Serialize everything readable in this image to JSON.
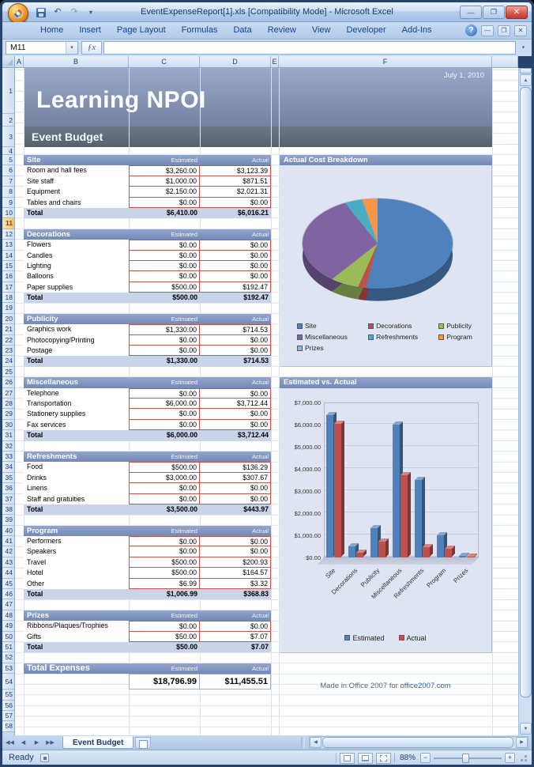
{
  "window": {
    "title": "EventExpenseReport[1].xls  [Compatibility Mode] - Microsoft Excel",
    "quick_access": [
      "Save",
      "Undo",
      "Redo"
    ],
    "ribbon_tabs": [
      "Home",
      "Insert",
      "Page Layout",
      "Formulas",
      "Data",
      "Review",
      "View",
      "Developer",
      "Add-Ins"
    ],
    "name_box": "M11",
    "fx_label": "ƒx",
    "formula_value": "",
    "sheet_tab": "Event Budget",
    "status": "Ready",
    "zoom": "88%"
  },
  "grid": {
    "columns": [
      "A",
      "B",
      "C",
      "D",
      "E",
      "F"
    ],
    "rows": {
      "first": 1,
      "last": 58,
      "selected_row": 11
    }
  },
  "sheet": {
    "date": "July 1, 2010",
    "title": "Learning NPOI",
    "banner": "Event Budget",
    "estimated_label": "Estimated",
    "actual_label": "Actual",
    "total_label": "Total",
    "sections": [
      {
        "name": "Site",
        "items": [
          {
            "label": "Room and hall fees",
            "est": "$3,260.00",
            "act": "$3,123.39"
          },
          {
            "label": "Site staff",
            "est": "$1,000.00",
            "act": "$871.51"
          },
          {
            "label": "Equipment",
            "est": "$2,150.00",
            "act": "$2,021.31"
          },
          {
            "label": "Tables and chairs",
            "est": "$0.00",
            "act": "$0.00"
          }
        ],
        "total_est": "$6,410.00",
        "total_act": "$6,016.21"
      },
      {
        "name": "Decorations",
        "items": [
          {
            "label": "Flowers",
            "est": "$0.00",
            "act": "$0.00"
          },
          {
            "label": "Candles",
            "est": "$0.00",
            "act": "$0.00"
          },
          {
            "label": "Lighting",
            "est": "$0.00",
            "act": "$0.00"
          },
          {
            "label": "Balloons",
            "est": "$0.00",
            "act": "$0.00"
          },
          {
            "label": "Paper supplies",
            "est": "$500.00",
            "act": "$192.47"
          }
        ],
        "total_est": "$500.00",
        "total_act": "$192.47"
      },
      {
        "name": "Publicity",
        "items": [
          {
            "label": "Graphics work",
            "est": "$1,330.00",
            "act": "$714.53"
          },
          {
            "label": "Photocopying/Printing",
            "est": "$0.00",
            "act": "$0.00"
          },
          {
            "label": "Postage",
            "est": "$0.00",
            "act": "$0.00"
          }
        ],
        "total_est": "$1,330.00",
        "total_act": "$714.53"
      },
      {
        "name": "Miscellaneous",
        "items": [
          {
            "label": "Telephone",
            "est": "$0.00",
            "act": "$0.00"
          },
          {
            "label": "Transportation",
            "est": "$6,000.00",
            "act": "$3,712.44"
          },
          {
            "label": "Stationery supplies",
            "est": "$0.00",
            "act": "$0.00"
          },
          {
            "label": "Fax services",
            "est": "$0.00",
            "act": "$0.00"
          }
        ],
        "total_est": "$6,000.00",
        "total_act": "$3,712.44"
      },
      {
        "name": "Refreshments",
        "items": [
          {
            "label": "Food",
            "est": "$500.00",
            "act": "$136.29"
          },
          {
            "label": "Drinks",
            "est": "$3,000.00",
            "act": "$307.67"
          },
          {
            "label": "Linens",
            "est": "$0.00",
            "act": "$0.00"
          },
          {
            "label": "Staff and gratuities",
            "est": "$0.00",
            "act": "$0.00"
          }
        ],
        "total_est": "$3,500.00",
        "total_act": "$443.97"
      },
      {
        "name": "Program",
        "items": [
          {
            "label": "Performers",
            "est": "$0.00",
            "act": "$0.00"
          },
          {
            "label": "Speakers",
            "est": "$0.00",
            "act": "$0.00"
          },
          {
            "label": "Travel",
            "est": "$500.00",
            "act": "$200.93"
          },
          {
            "label": "Hotel",
            "est": "$500.00",
            "act": "$164.57"
          },
          {
            "label": "Other",
            "est": "$6.99",
            "act": "$3.32"
          }
        ],
        "total_est": "$1,006.99",
        "total_act": "$368.83"
      },
      {
        "name": "Prizes",
        "items": [
          {
            "label": "Ribbons/Plaques/Trophies",
            "est": "$0.00",
            "act": "$0.00"
          },
          {
            "label": "Gifts",
            "est": "$50.00",
            "act": "$7.07"
          }
        ],
        "total_est": "$50.00",
        "total_act": "$7.07"
      }
    ],
    "grand_total": {
      "label": "Total Expenses",
      "estimated": "$18,796.99",
      "actual": "$11,455.51"
    },
    "footer": {
      "text": "Made in Office 2007 for ",
      "link": "office2007.com"
    }
  },
  "chart_data": [
    {
      "type": "pie",
      "title": "Actual Cost Breakdown",
      "labels": [
        "Site",
        "Decorations",
        "Publicity",
        "Miscellaneous",
        "Refreshments",
        "Program",
        "Prizes"
      ],
      "values": [
        6016.21,
        192.47,
        714.53,
        3712.44,
        443.97,
        368.83,
        7.07
      ],
      "colors": [
        "#4F81BD",
        "#C0504D",
        "#9BBB59",
        "#8064A2",
        "#4BACC6",
        "#F79646",
        "#95B3D7"
      ],
      "legend_position": "bottom"
    },
    {
      "type": "bar",
      "title": "Estimated vs. Actual",
      "categories": [
        "Site",
        "Decorations",
        "Publicity",
        "Miscellaneous",
        "Refreshments",
        "Program",
        "Prizes"
      ],
      "series": [
        {
          "name": "Estimated",
          "color": "#4F81BD",
          "values": [
            6410,
            500,
            1330,
            6000,
            3500,
            1006.99,
            50
          ]
        },
        {
          "name": "Actual",
          "color": "#C0504D",
          "values": [
            6016.21,
            192.47,
            714.53,
            3712.44,
            443.97,
            368.83,
            7.07
          ]
        }
      ],
      "ylim": [
        0,
        7000
      ],
      "yticks": [
        "$0.00",
        "$1,000.00",
        "$2,000.00",
        "$3,000.00",
        "$4,000.00",
        "$5,000.00",
        "$6,000.00",
        "$7,000.00"
      ],
      "legend_position": "bottom"
    }
  ]
}
